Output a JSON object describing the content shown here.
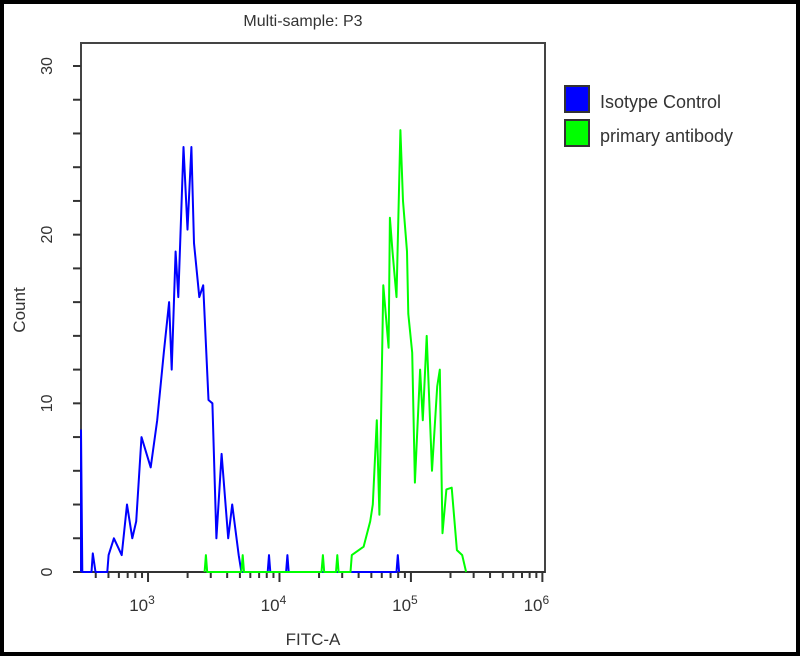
{
  "chart_data": {
    "type": "line",
    "title": "Multi-sample: P3",
    "xlabel": "FITC-A",
    "ylabel": "Count",
    "x_scale": "log10",
    "xlim_log10": [
      2.49,
      6.02
    ],
    "ylim": [
      0,
      30
    ],
    "x_ticks": [
      {
        "base": "10",
        "exp": "3",
        "log": 3
      },
      {
        "base": "10",
        "exp": "4",
        "log": 4
      },
      {
        "base": "10",
        "exp": "5",
        "log": 5
      },
      {
        "base": "10",
        "exp": "6",
        "log": 6
      }
    ],
    "y_ticks": [
      "0",
      "10",
      "20",
      "30"
    ],
    "y_tick_values": [
      0,
      10,
      20,
      30
    ],
    "y_minor_step": 2,
    "legend_position": "right",
    "series": [
      {
        "name": "Isotype Control",
        "color": "#0000ff",
        "points": [
          [
            2.49,
            0
          ],
          [
            2.49,
            8.4
          ],
          [
            2.5,
            0
          ],
          [
            2.57,
            0
          ],
          [
            2.58,
            1.1
          ],
          [
            2.6,
            0
          ],
          [
            2.69,
            0
          ],
          [
            2.7,
            1
          ],
          [
            2.74,
            2
          ],
          [
            2.8,
            1
          ],
          [
            2.84,
            4
          ],
          [
            2.88,
            2
          ],
          [
            2.91,
            3
          ],
          [
            2.95,
            8
          ],
          [
            3.02,
            6.2
          ],
          [
            3.07,
            9
          ],
          [
            3.12,
            13
          ],
          [
            3.16,
            16
          ],
          [
            3.18,
            12
          ],
          [
            3.21,
            19
          ],
          [
            3.23,
            16.3
          ],
          [
            3.27,
            25.2
          ],
          [
            3.3,
            20.3
          ],
          [
            3.33,
            25.2
          ],
          [
            3.35,
            19.5
          ],
          [
            3.39,
            16.3
          ],
          [
            3.42,
            17
          ],
          [
            3.46,
            10.2
          ],
          [
            3.49,
            10
          ],
          [
            3.52,
            2
          ],
          [
            3.56,
            7
          ],
          [
            3.61,
            2
          ],
          [
            3.64,
            4
          ],
          [
            3.69,
            1
          ],
          [
            3.71,
            0
          ],
          [
            3.91,
            0
          ],
          [
            3.92,
            1
          ],
          [
            3.93,
            0
          ],
          [
            4.05,
            0
          ],
          [
            4.06,
            1
          ],
          [
            4.07,
            0
          ],
          [
            4.89,
            0
          ],
          [
            4.9,
            1
          ],
          [
            4.91,
            0
          ]
        ]
      },
      {
        "name": "primary antibody",
        "color": "#00ff00",
        "points": [
          [
            3.43,
            0
          ],
          [
            3.44,
            1
          ],
          [
            3.45,
            0
          ],
          [
            3.71,
            0
          ],
          [
            3.72,
            1
          ],
          [
            3.73,
            0
          ],
          [
            4.32,
            0
          ],
          [
            4.33,
            1
          ],
          [
            4.34,
            0
          ],
          [
            4.43,
            0
          ],
          [
            4.44,
            1
          ],
          [
            4.45,
            0
          ],
          [
            4.54,
            0
          ],
          [
            4.55,
            1
          ],
          [
            4.64,
            1.5
          ],
          [
            4.69,
            3
          ],
          [
            4.71,
            4
          ],
          [
            4.74,
            9
          ],
          [
            4.76,
            3.4
          ],
          [
            4.79,
            17
          ],
          [
            4.83,
            13.3
          ],
          [
            4.84,
            21
          ],
          [
            4.86,
            19
          ],
          [
            4.89,
            16.3
          ],
          [
            4.92,
            26.2
          ],
          [
            4.94,
            22
          ],
          [
            4.97,
            19
          ],
          [
            4.98,
            15.3
          ],
          [
            5.01,
            13
          ],
          [
            5.03,
            5.3
          ],
          [
            5.07,
            12
          ],
          [
            5.09,
            9
          ],
          [
            5.12,
            14
          ],
          [
            5.16,
            6
          ],
          [
            5.2,
            11
          ],
          [
            5.22,
            12
          ],
          [
            5.24,
            2.3
          ],
          [
            5.27,
            4.9
          ],
          [
            5.31,
            5
          ],
          [
            5.35,
            1.3
          ],
          [
            5.39,
            1
          ],
          [
            5.42,
            0
          ]
        ]
      }
    ]
  }
}
